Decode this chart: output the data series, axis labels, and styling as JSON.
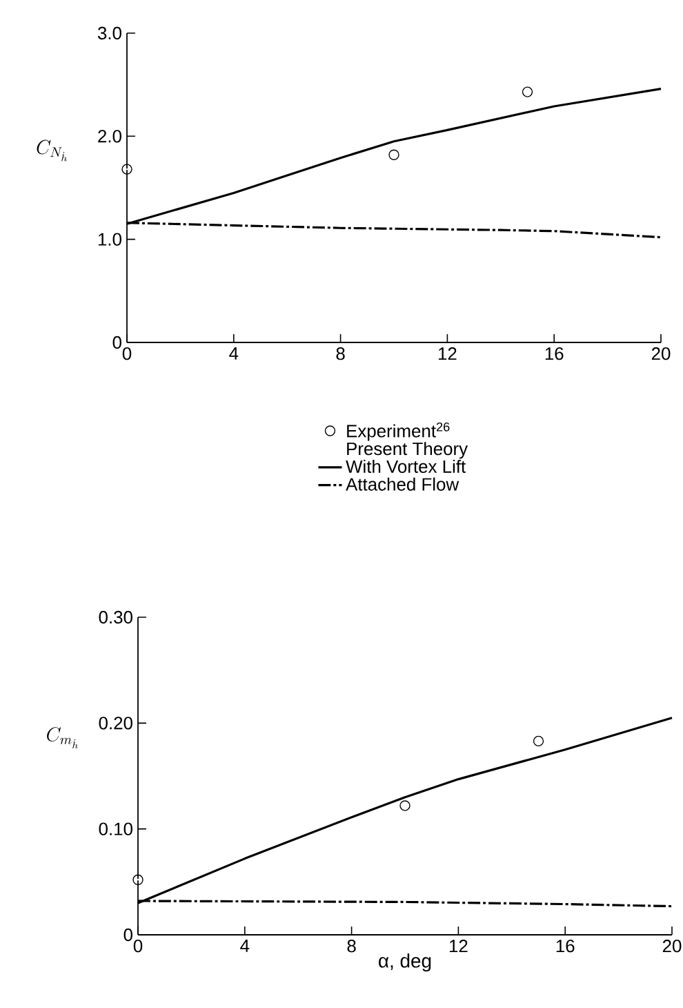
{
  "chart_data": [
    {
      "type": "line",
      "ylabel": "C_{N_{\\dot{h}}}",
      "xlim": [
        0,
        20
      ],
      "ylim": [
        0,
        3
      ],
      "xticks": [
        0,
        4,
        8,
        12,
        16,
        20
      ],
      "yticks": [
        0,
        {
          "value": 1,
          "label": "1.0"
        },
        {
          "value": 2,
          "label": "2.0"
        },
        {
          "value": 3,
          "label": "3.0"
        }
      ],
      "legend": "bottom",
      "annotations": [
        "Present Theory"
      ],
      "series": [
        {
          "name": "Experiment$^{26}$",
          "type": "scatter",
          "marker": "circle",
          "color": "#000000",
          "x": [
            0,
            10,
            15
          ],
          "values": [
            1.68,
            1.82,
            2.43
          ]
        },
        {
          "name": "With Vortex Lift",
          "line_style": "solid",
          "color": "#000000",
          "x": [
            0,
            4,
            8,
            10,
            12,
            16,
            20
          ],
          "values": [
            1.15,
            1.45,
            1.79,
            1.95,
            2.06,
            2.29,
            2.46
          ]
        },
        {
          "name": "Attached Flow",
          "line_style": "dashed",
          "color": "#000000",
          "x": [
            0,
            8,
            14,
            16,
            20
          ],
          "values": [
            1.16,
            1.11,
            1.09,
            1.08,
            1.02
          ]
        }
      ]
    },
    {
      "type": "line",
      "ylabel": "C_{m_{\\dot{h}}}",
      "xlabel": "α, deg",
      "xlim": [
        0,
        20
      ],
      "ylim": [
        0,
        0.3
      ],
      "xticks": [
        0,
        4,
        8,
        12,
        16,
        20
      ],
      "yticks": [
        0,
        {
          "value": 0.1,
          "label": "0.10"
        },
        {
          "value": 0.2,
          "label": "0.20"
        },
        {
          "value": 0.3,
          "label": "0.30"
        }
      ],
      "series": [
        {
          "type": "scatter",
          "marker": "circle",
          "color": "#000000",
          "x": [
            0,
            10,
            15
          ],
          "values": [
            0.052,
            0.122,
            0.183
          ]
        },
        {
          "line_style": "solid",
          "color": "#000000",
          "x": [
            0,
            4,
            8,
            10,
            12,
            16,
            20
          ],
          "values": [
            0.03,
            0.072,
            0.111,
            0.13,
            0.147,
            0.175,
            0.205
          ]
        },
        {
          "line_style": "dashed",
          "color": "#000000",
          "x": [
            0,
            10,
            16,
            20
          ],
          "values": [
            0.032,
            0.031,
            0.029,
            0.027
          ]
        }
      ]
    }
  ]
}
